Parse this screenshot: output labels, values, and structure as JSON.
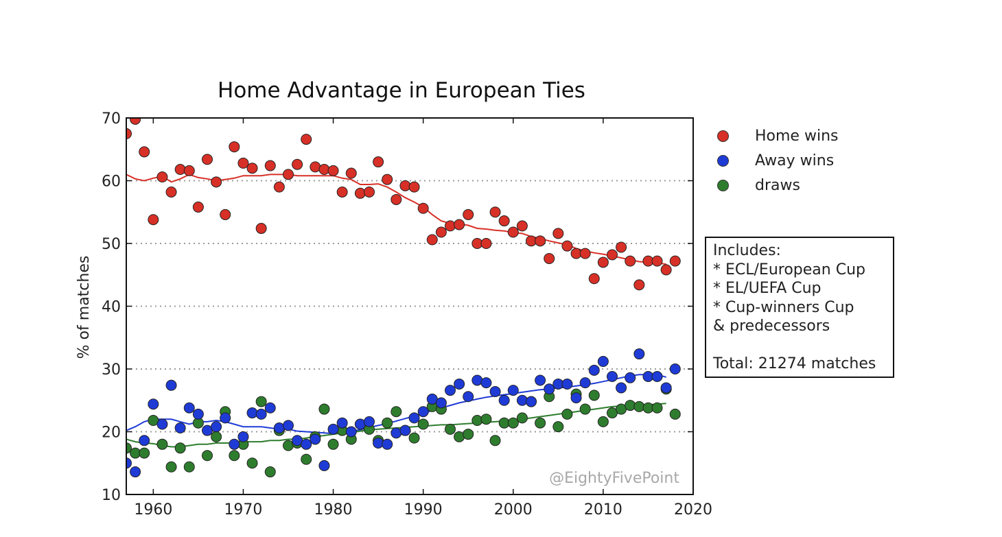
{
  "chart_data": {
    "type": "scatter",
    "title": "Home Advantage in European Ties",
    "xlabel": "",
    "ylabel": "% of matches",
    "xlim": [
      1957,
      2020
    ],
    "ylim": [
      10,
      70
    ],
    "x_ticks": [
      1960,
      1970,
      1980,
      1990,
      2000,
      2010,
      2020
    ],
    "y_ticks": [
      10,
      20,
      30,
      40,
      50,
      60,
      70
    ],
    "grid": "horizontal dotted",
    "legend_position": "right, outside plot",
    "watermark": "@EightyFivePoint",
    "series": [
      {
        "name": "Home wins",
        "color": "#d73027",
        "x": [
          1957,
          1958,
          1959,
          1960,
          1961,
          1962,
          1963,
          1964,
          1965,
          1966,
          1967,
          1968,
          1969,
          1970,
          1971,
          1972,
          1973,
          1974,
          1975,
          1976,
          1977,
          1978,
          1979,
          1980,
          1981,
          1982,
          1983,
          1984,
          1985,
          1986,
          1987,
          1988,
          1989,
          1990,
          1991,
          1992,
          1993,
          1994,
          1995,
          1996,
          1997,
          1998,
          1999,
          2000,
          2001,
          2002,
          2003,
          2004,
          2005,
          2006,
          2007,
          2008,
          2009,
          2010,
          2011,
          2012,
          2013,
          2014,
          2015,
          2016,
          2017,
          2018
        ],
        "y": [
          67.5,
          69.8,
          64.6,
          53.8,
          60.6,
          58.2,
          61.8,
          61.6,
          55.8,
          63.4,
          59.8,
          54.6,
          65.4,
          62.8,
          62.0,
          52.4,
          62.4,
          59.0,
          61.0,
          62.6,
          66.6,
          62.2,
          61.8,
          61.6,
          58.2,
          61.2,
          58.0,
          58.2,
          63.0,
          60.2,
          57.0,
          59.2,
          59.0,
          55.6,
          50.6,
          51.8,
          52.8,
          53.0,
          54.6,
          50.0,
          50.0,
          55.0,
          53.6,
          51.8,
          52.8,
          50.4,
          50.4,
          47.6,
          51.6,
          49.6,
          48.4,
          48.4,
          44.4,
          47.0,
          48.2,
          49.4,
          47.2,
          43.4,
          47.2,
          47.2,
          45.8,
          47.2
        ],
        "trend_x": [
          1957,
          1958,
          1959,
          1960,
          1961,
          1962,
          1963,
          1964,
          1965,
          1966,
          1967,
          1968,
          1969,
          1970,
          1971,
          1972,
          1973,
          1974,
          1975,
          1976,
          1977,
          1978,
          1979,
          1980,
          1981,
          1982,
          1983,
          1984,
          1985,
          1986,
          1987,
          1988,
          1989,
          1990,
          1991,
          1992,
          1993,
          1994,
          1995,
          1996,
          1997,
          1998,
          1999,
          2000,
          2001,
          2002,
          2003,
          2004,
          2005,
          2006,
          2007,
          2008,
          2009,
          2010,
          2011,
          2012,
          2013,
          2014,
          2015,
          2016,
          2017
        ],
        "trend_y": [
          61.0,
          60.3,
          60.0,
          60.4,
          60.7,
          59.8,
          60.3,
          61.0,
          60.5,
          60.3,
          60.0,
          60.2,
          60.4,
          60.8,
          60.8,
          60.8,
          61.0,
          61.0,
          61.0,
          60.8,
          60.8,
          60.8,
          60.8,
          60.8,
          60.4,
          60.2,
          59.4,
          59.4,
          59.5,
          59.0,
          58.2,
          57.3,
          56.6,
          55.8,
          54.6,
          53.6,
          53.2,
          53.1,
          52.9,
          52.4,
          52.3,
          52.1,
          52.0,
          51.7,
          51.6,
          51.1,
          50.8,
          50.4,
          50.1,
          49.8,
          49.2,
          48.8,
          48.5,
          48.3,
          48.0,
          47.7,
          47.4,
          47.1,
          47.0,
          46.9,
          46.7
        ]
      },
      {
        "name": "Away wins",
        "color": "#1f3bd6",
        "x": [
          1957,
          1958,
          1959,
          1960,
          1961,
          1962,
          1963,
          1964,
          1965,
          1966,
          1967,
          1968,
          1969,
          1970,
          1971,
          1972,
          1973,
          1974,
          1975,
          1976,
          1977,
          1978,
          1979,
          1980,
          1981,
          1982,
          1983,
          1984,
          1985,
          1986,
          1987,
          1988,
          1989,
          1990,
          1991,
          1992,
          1993,
          1994,
          1995,
          1996,
          1997,
          1998,
          1999,
          2000,
          2001,
          2002,
          2003,
          2004,
          2005,
          2006,
          2007,
          2008,
          2009,
          2010,
          2011,
          2012,
          2013,
          2014,
          2015,
          2016,
          2017,
          2018
        ],
        "y": [
          15.0,
          13.6,
          18.6,
          24.4,
          21.2,
          27.4,
          20.6,
          23.8,
          22.8,
          20.2,
          20.8,
          22.2,
          18.0,
          19.2,
          23.0,
          22.8,
          23.8,
          20.6,
          21.0,
          18.6,
          18.0,
          18.8,
          14.6,
          20.4,
          21.4,
          20.0,
          21.2,
          21.6,
          18.2,
          18.0,
          19.8,
          20.2,
          22.2,
          23.2,
          25.2,
          24.6,
          26.6,
          27.6,
          25.6,
          28.2,
          27.8,
          26.4,
          25.0,
          26.6,
          25.0,
          24.8,
          28.2,
          26.8,
          27.6,
          27.6,
          25.4,
          27.8,
          29.8,
          31.2,
          28.8,
          27.0,
          28.6,
          32.4,
          28.8,
          28.8,
          27.0,
          30.0
        ],
        "trend_x": [
          1957,
          1958,
          1959,
          1960,
          1961,
          1962,
          1963,
          1964,
          1965,
          1966,
          1967,
          1968,
          1969,
          1970,
          1971,
          1972,
          1973,
          1974,
          1975,
          1976,
          1977,
          1978,
          1979,
          1980,
          1981,
          1982,
          1983,
          1984,
          1985,
          1986,
          1987,
          1988,
          1989,
          1990,
          1991,
          1992,
          1993,
          1994,
          1995,
          1996,
          1997,
          1998,
          1999,
          2000,
          2001,
          2002,
          2003,
          2004,
          2005,
          2006,
          2007,
          2008,
          2009,
          2010,
          2011,
          2012,
          2013,
          2014,
          2015,
          2016,
          2017
        ],
        "trend_y": [
          20.2,
          20.8,
          21.6,
          22.0,
          22.0,
          22.0,
          21.6,
          21.2,
          21.6,
          21.6,
          21.8,
          21.6,
          21.2,
          20.8,
          20.8,
          20.8,
          20.6,
          20.4,
          20.4,
          20.1,
          20.0,
          19.9,
          19.8,
          19.7,
          19.9,
          20.1,
          20.3,
          20.7,
          21.0,
          21.3,
          21.7,
          22.1,
          22.5,
          22.9,
          23.4,
          23.8,
          24.2,
          24.6,
          24.9,
          25.2,
          25.5,
          25.7,
          25.9,
          26.1,
          26.3,
          26.5,
          26.7,
          26.8,
          27.0,
          27.1,
          27.3,
          27.5,
          27.7,
          28.0,
          28.3,
          28.6,
          28.9,
          29.1,
          29.1,
          29.1,
          28.7
        ]
      },
      {
        "name": "draws",
        "color": "#2e7d2e",
        "x": [
          1957,
          1958,
          1959,
          1960,
          1961,
          1962,
          1963,
          1964,
          1965,
          1966,
          1967,
          1968,
          1969,
          1970,
          1971,
          1972,
          1973,
          1974,
          1975,
          1976,
          1977,
          1978,
          1979,
          1980,
          1981,
          1982,
          1983,
          1984,
          1985,
          1986,
          1987,
          1988,
          1989,
          1990,
          1991,
          1992,
          1993,
          1994,
          1995,
          1996,
          1997,
          1998,
          1999,
          2000,
          2001,
          2002,
          2003,
          2004,
          2005,
          2006,
          2007,
          2008,
          2009,
          2010,
          2011,
          2012,
          2013,
          2014,
          2015,
          2016,
          2017,
          2018
        ],
        "y": [
          17.4,
          16.6,
          16.6,
          21.8,
          18.0,
          14.4,
          17.4,
          14.4,
          21.4,
          16.2,
          19.2,
          23.2,
          16.2,
          18.0,
          15.0,
          24.8,
          13.6,
          20.2,
          17.8,
          18.2,
          15.6,
          19.2,
          23.6,
          18.0,
          20.2,
          18.8,
          21.2,
          20.4,
          18.6,
          21.4,
          23.2,
          20.2,
          19.0,
          21.2,
          24.0,
          23.6,
          20.4,
          19.2,
          19.6,
          21.8,
          22.0,
          18.6,
          21.4,
          21.4,
          22.2,
          24.8,
          21.4,
          25.6,
          20.8,
          22.8,
          26.0,
          23.6,
          25.8,
          21.6,
          23.0,
          23.6,
          24.2,
          24.0,
          23.8,
          23.8,
          26.8,
          22.8
        ],
        "trend_x": [
          1957,
          1958,
          1959,
          1960,
          1961,
          1962,
          1963,
          1964,
          1965,
          1966,
          1967,
          1968,
          1969,
          1970,
          1971,
          1972,
          1973,
          1974,
          1975,
          1976,
          1977,
          1978,
          1979,
          1980,
          1981,
          1982,
          1983,
          1984,
          1985,
          1986,
          1987,
          1988,
          1989,
          1990,
          1991,
          1992,
          1993,
          1994,
          1995,
          1996,
          1997,
          1998,
          1999,
          2000,
          2001,
          2002,
          2003,
          2004,
          2005,
          2006,
          2007,
          2008,
          2009,
          2010,
          2011,
          2012,
          2013,
          2014,
          2015,
          2016,
          2017
        ],
        "trend_y": [
          18.8,
          18.4,
          18.2,
          18.1,
          17.8,
          17.6,
          17.6,
          17.8,
          18.0,
          18.0,
          18.2,
          18.2,
          18.2,
          18.4,
          18.4,
          18.4,
          18.6,
          18.6,
          18.8,
          18.8,
          19.0,
          19.2,
          19.4,
          19.6,
          19.8,
          19.9,
          20.1,
          20.3,
          20.4,
          20.5,
          20.6,
          20.7,
          20.8,
          20.9,
          21.0,
          21.1,
          21.1,
          21.2,
          21.3,
          21.4,
          21.5,
          21.6,
          21.7,
          21.8,
          22.0,
          22.2,
          22.4,
          22.6,
          22.8,
          23.0,
          23.2,
          23.4,
          23.6,
          23.8,
          24.0,
          24.1,
          24.2,
          24.3,
          24.3,
          24.4,
          24.5
        ]
      }
    ]
  },
  "annotation": {
    "lines": [
      "Includes:",
      "* ECL/European Cup",
      "* EL/UEFA Cup",
      "* Cup-winners Cup",
      "& predecessors",
      "",
      "Total: 21274 matches"
    ]
  }
}
